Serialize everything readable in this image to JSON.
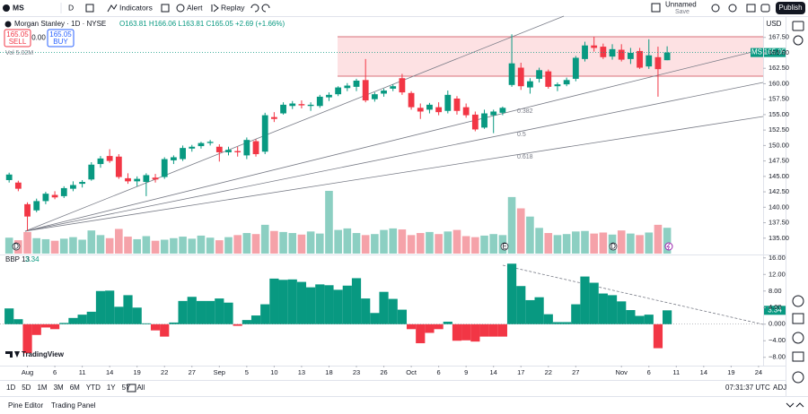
{
  "toolbar": {
    "symbol": "MS",
    "interval": "D",
    "indicators": "Indicators",
    "alert": "Alert",
    "replay": "Replay",
    "layout_name": "Unnamed",
    "layout_status": "Save",
    "publish": "Publish"
  },
  "legend": {
    "title": "Morgan Stanley · 1D · NYSE",
    "ohlc": "O163.81 H166.06 L163.81 C165.05 +2.69 (+1.66%)",
    "sell_price": "165.05",
    "sell": "SELL",
    "spread": "0.00",
    "buy_price": "165.05",
    "buy": "BUY",
    "volume": "Vol 5.02M",
    "indicator": "BBP 13"
  },
  "chart_data": [
    {
      "type": "candlestick",
      "currency": "USD",
      "symbol_tag": "MS",
      "up_color": "#089981",
      "down_color": "#f23645",
      "volume_up_color": "#8ccfc2",
      "volume_down_color": "#f5a2a9",
      "open": [
        144.4,
        144.0,
        140.5,
        139.5,
        141.0,
        142.0,
        141.8,
        143.0,
        143.8,
        144.5,
        147.0,
        148.3,
        148.2,
        144.7,
        144.2,
        144.1,
        144.8,
        144.9,
        147.6,
        147.8,
        149.5,
        149.9,
        150.4,
        149.8,
        148.9,
        149.1,
        148.4,
        150.7,
        149.0,
        154.6,
        155.2,
        156.4,
        156.7,
        156.4,
        156.4,
        157.8,
        158.3,
        159.3,
        159.5,
        160.6,
        157.5,
        158.4,
        159.2,
        160.9,
        158.5,
        156.1,
        155.8,
        156.2,
        155.6,
        157.6,
        156.2,
        155.0,
        152.9,
        154.9,
        155.3,
        159.8,
        162.6,
        159.4,
        160.8,
        162.0,
        159.6,
        159.9,
        160.8,
        164.0,
        166.2,
        166.0,
        164.4,
        165.5,
        164.0,
        165.3,
        162.8,
        164.3,
        163.81
      ],
      "high": [
        145.6,
        144.3,
        140.8,
        141.4,
        142.5,
        142.6,
        143.4,
        144.2,
        144.4,
        147.3,
        148.3,
        149.4,
        148.6,
        145.5,
        145.0,
        145.5,
        145.4,
        148.1,
        148.4,
        150.0,
        150.1,
        150.6,
        150.9,
        150.2,
        149.8,
        149.8,
        151.3,
        151.0,
        155.3,
        155.4,
        157.0,
        157.2,
        157.3,
        157.0,
        158.2,
        158.6,
        159.6,
        160.1,
        160.8,
        164.0,
        158.6,
        159.2,
        159.9,
        161.6,
        158.8,
        156.8,
        156.9,
        157.0,
        158.9,
        158.0,
        156.8,
        155.5,
        155.8,
        155.8,
        156.3,
        168.0,
        163.4,
        160.9,
        162.6,
        162.3,
        160.2,
        161.0,
        164.5,
        166.8,
        167.6,
        166.5,
        166.4,
        166.4,
        165.8,
        165.8,
        167.2,
        166.0,
        166.06
      ],
      "low": [
        144.0,
        142.6,
        136.2,
        139.2,
        140.5,
        141.3,
        141.5,
        142.6,
        143.2,
        144.3,
        146.4,
        147.2,
        144.6,
        143.8,
        143.4,
        141.8,
        144.0,
        144.6,
        147.0,
        147.5,
        149.0,
        149.5,
        150.0,
        147.4,
        148.4,
        148.2,
        147.8,
        148.2,
        148.6,
        153.8,
        155.0,
        155.9,
        156.0,
        155.6,
        156.1,
        157.2,
        158.0,
        158.8,
        158.8,
        157.0,
        157.1,
        157.9,
        158.8,
        158.2,
        155.8,
        154.3,
        155.2,
        154.9,
        155.2,
        155.0,
        154.5,
        152.3,
        152.7,
        152.0,
        154.9,
        159.5,
        159.0,
        158.4,
        160.2,
        159.2,
        158.8,
        159.6,
        160.4,
        163.6,
        165.2,
        164.0,
        163.9,
        163.6,
        163.2,
        162.4,
        162.4,
        157.9,
        163.81
      ],
      "close": [
        145.3,
        143.0,
        138.5,
        141.0,
        142.2,
        141.6,
        143.1,
        143.6,
        144.1,
        146.9,
        147.9,
        147.5,
        144.9,
        144.2,
        144.6,
        145.2,
        144.5,
        147.8,
        148.1,
        149.6,
        149.8,
        150.4,
        150.6,
        148.9,
        149.3,
        148.9,
        150.9,
        148.6,
        154.9,
        154.3,
        156.6,
        156.8,
        156.5,
        156.6,
        157.9,
        158.2,
        159.4,
        159.7,
        160.5,
        157.3,
        158.3,
        158.9,
        159.6,
        158.6,
        156.2,
        155.5,
        156.6,
        155.4,
        158.2,
        155.6,
        154.9,
        152.6,
        155.2,
        155.5,
        156.1,
        163.3,
        159.6,
        160.4,
        162.2,
        159.5,
        159.9,
        160.6,
        164.2,
        166.2,
        165.8,
        164.3,
        165.6,
        163.9,
        165.0,
        162.6,
        164.6,
        162.36,
        165.05
      ],
      "volume": [
        3.1,
        2.6,
        4.2,
        3.0,
        2.8,
        2.5,
        2.9,
        3.2,
        2.7,
        4.5,
        3.6,
        3.0,
        4.8,
        3.3,
        2.8,
        3.4,
        2.5,
        2.7,
        3.0,
        3.3,
        2.9,
        3.5,
        3.1,
        2.6,
        3.2,
        3.6,
        4.0,
        3.8,
        5.6,
        4.4,
        4.2,
        4.0,
        3.7,
        4.3,
        3.9,
        12.2,
        4.6,
        4.9,
        4.0,
        3.6,
        3.8,
        4.6,
        4.9,
        4.7,
        3.6,
        4.0,
        4.2,
        3.8,
        4.3,
        4.6,
        3.4,
        3.2,
        3.5,
        3.8,
        3.6,
        11.0,
        8.8,
        7.2,
        5.0,
        4.0,
        3.6,
        3.8,
        4.3,
        4.4,
        3.9,
        4.1,
        3.7,
        4.5,
        3.9,
        3.6,
        4.1,
        5.6,
        5.02
      ],
      "xlim": [
        -1,
        82.5
      ],
      "xticks": [
        {
          "value": 2,
          "label": "Aug"
        },
        {
          "value": 5,
          "label": "6"
        },
        {
          "value": 8,
          "label": "11"
        },
        {
          "value": 11,
          "label": "14"
        },
        {
          "value": 14,
          "label": "19"
        },
        {
          "value": 17,
          "label": "22"
        },
        {
          "value": 20,
          "label": "27"
        },
        {
          "value": 23,
          "label": "Sep"
        },
        {
          "value": 26,
          "label": "5"
        },
        {
          "value": 29,
          "label": "10"
        },
        {
          "value": 32,
          "label": "13"
        },
        {
          "value": 35,
          "label": "18"
        },
        {
          "value": 38,
          "label": "23"
        },
        {
          "value": 41,
          "label": "26"
        },
        {
          "value": 44,
          "label": "Oct"
        },
        {
          "value": 47,
          "label": "6"
        },
        {
          "value": 50,
          "label": "9"
        },
        {
          "value": 53,
          "label": "14"
        },
        {
          "value": 56,
          "label": "17"
        },
        {
          "value": 59,
          "label": "22"
        },
        {
          "value": 62,
          "label": "27"
        },
        {
          "value": 67,
          "label": "Nov"
        },
        {
          "value": 70,
          "label": "6"
        },
        {
          "value": 73,
          "label": "11"
        },
        {
          "value": 76,
          "label": "14"
        },
        {
          "value": 79,
          "label": "19"
        },
        {
          "value": 82,
          "label": "24"
        }
      ],
      "ylim": [
        132.5,
        170.8
      ],
      "yticks": [
        {
          "value": 167.5,
          "label": "167.50"
        },
        {
          "value": 165,
          "label": "165.00"
        },
        {
          "value": 162.5,
          "label": "162.50"
        },
        {
          "value": 160,
          "label": "160.00"
        },
        {
          "value": 157.5,
          "label": "157.50"
        },
        {
          "value": 155,
          "label": "155.00"
        },
        {
          "value": 152.5,
          "label": "152.50"
        },
        {
          "value": 150,
          "label": "150.00"
        },
        {
          "value": 147.5,
          "label": "147.50"
        },
        {
          "value": 145,
          "label": "145.00"
        },
        {
          "value": 142.5,
          "label": "142.50"
        },
        {
          "value": 140,
          "label": "140.00"
        },
        {
          "value": 137.5,
          "label": "137.50"
        },
        {
          "value": 135,
          "label": "135.00"
        }
      ]
    },
    {
      "type": "bar",
      "positive_color": "#089981",
      "negative_color": "#f23645",
      "values": [
        3.8,
        1.2,
        -7.0,
        -2.6,
        -0.8,
        -1.2,
        0.3,
        1.5,
        2.3,
        3.0,
        8.0,
        8.1,
        4.2,
        7.0,
        4.0,
        0.2,
        -1.5,
        -3.0,
        0.4,
        5.6,
        6.6,
        5.6,
        5.6,
        6.2,
        5.2,
        -0.4,
        1.0,
        2.1,
        4.8,
        11.0,
        10.7,
        10.8,
        10.2,
        8.9,
        9.6,
        9.4,
        8.3,
        9.3,
        11.1,
        6.2,
        2.7,
        7.8,
        6.1,
        3.5,
        -1.2,
        -4.6,
        -2.1,
        -1.2,
        0.6,
        -4.0,
        -3.9,
        -4.2,
        -3.0,
        -3.0,
        -3.0,
        14.6,
        9.2,
        5.8,
        6.5,
        2.4,
        0.5,
        0.5,
        4.8,
        11.5,
        10.0,
        7.4,
        7.0,
        5.5,
        3.4,
        2.0,
        2.3,
        -5.8,
        3.34
      ],
      "ylim": [
        -10,
        16.6
      ],
      "yticks": [
        {
          "value": 16,
          "label": "16.00"
        },
        {
          "value": 12,
          "label": "12.00"
        },
        {
          "value": 8,
          "label": "8.00"
        },
        {
          "value": 4,
          "label": "4.00"
        },
        {
          "value": 0,
          "label": "0.000"
        },
        {
          "value": -4,
          "label": "−4.00"
        },
        {
          "value": -8,
          "label": "−8.00"
        }
      ]
    }
  ],
  "annotations": [
    "0.382",
    "0.5",
    "0.618"
  ],
  "events": [
    "D",
    "E",
    "D"
  ],
  "branding": "TradingView",
  "timeframes": [
    "1D",
    "5D",
    "1M",
    "3M",
    "6M",
    "YTD",
    "1Y",
    "5Y",
    "All"
  ],
  "clock": "07:31:37 UTC",
  "adjust": "ADJ",
  "panels": [
    "Pine Editor",
    "Trading Panel"
  ]
}
